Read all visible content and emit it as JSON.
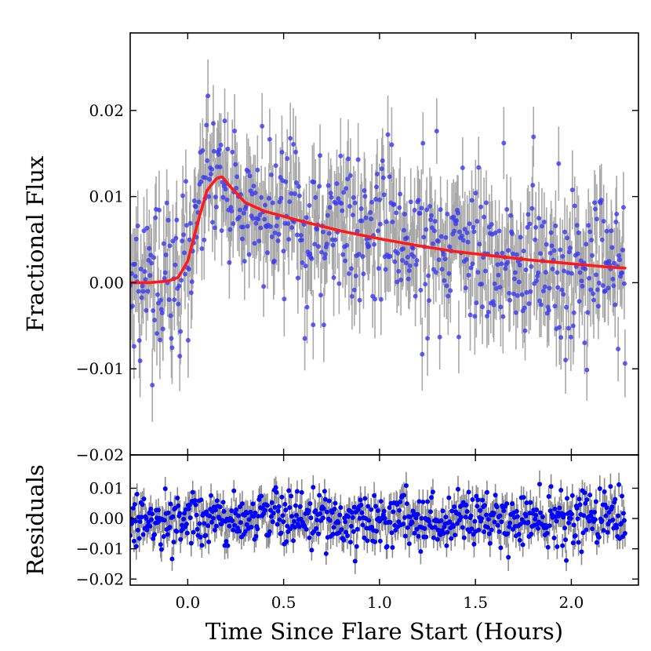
{
  "chart_data": [
    {
      "type": "scatter",
      "panel": "main",
      "ylabel": "Fractional Flux",
      "xlim": [
        -0.3,
        2.35
      ],
      "ylim": [
        -0.02,
        0.029
      ],
      "yticks": [
        0.02,
        0.01,
        0.0,
        -0.01,
        -0.02
      ],
      "ytick_labels": [
        "0.02",
        "0.01",
        "0.00",
        "−0.01",
        "−0.02"
      ],
      "series": [
        {
          "name": "data",
          "kind": "points-with-errorbars",
          "color": "#3a3af2",
          "errorbar_color": "#a8a8a8",
          "x_start": -0.3,
          "x_end": 2.28,
          "n_points": 650,
          "noise_sigma": 0.0045,
          "error_halfwidth": 0.004,
          "note": "dense scatter of observations following the model with Gaussian-like noise"
        },
        {
          "name": "model",
          "kind": "line",
          "color": "#ff1a1a",
          "x": [
            -0.3,
            -0.2,
            -0.1,
            -0.05,
            0.0,
            0.05,
            0.1,
            0.15,
            0.18,
            0.22,
            0.3,
            0.4,
            0.6,
            0.8,
            1.0,
            1.2,
            1.4,
            1.6,
            1.8,
            2.0,
            2.2,
            2.28
          ],
          "y": [
            0.0,
            0.0,
            0.0002,
            0.0006,
            0.0025,
            0.0068,
            0.0107,
            0.0121,
            0.0123,
            0.0112,
            0.0093,
            0.0083,
            0.0071,
            0.006,
            0.0051,
            0.0043,
            0.0036,
            0.0031,
            0.0026,
            0.0022,
            0.0018,
            0.0017
          ]
        }
      ]
    },
    {
      "type": "scatter",
      "panel": "residuals",
      "ylabel": "Residuals",
      "xlabel": "Time Since Flare Start (Hours)",
      "xlim": [
        -0.3,
        2.35
      ],
      "ylim": [
        -0.022,
        0.021
      ],
      "xticks": [
        0.0,
        0.5,
        1.0,
        1.5,
        2.0
      ],
      "xtick_labels": [
        "0.0",
        "0.5",
        "1.0",
        "1.5",
        "2.0"
      ],
      "yticks": [
        0.01,
        0.0,
        -0.01,
        -0.02
      ],
      "ytick_labels": [
        "0.01",
        "0.00",
        "−0.01",
        "−0.02"
      ],
      "series": [
        {
          "name": "residuals",
          "kind": "points-with-errorbars",
          "color": "#0000ff",
          "errorbar_color": "#8a8a8a",
          "x_start": -0.3,
          "x_end": 2.28,
          "n_points": 650,
          "noise_sigma": 0.0045,
          "error_halfwidth": 0.004
        }
      ]
    }
  ]
}
